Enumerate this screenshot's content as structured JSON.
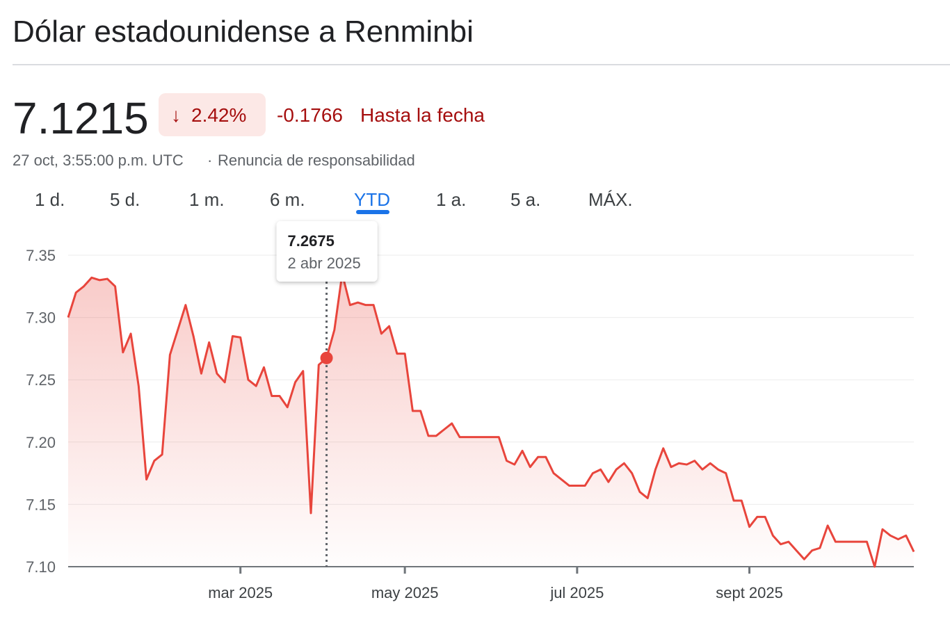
{
  "header": {
    "title": "Dólar estadounidense a Renminbi",
    "price": "7.1215",
    "change_percent": "2.42%",
    "change": "-0.1766",
    "period": "Hasta la fecha",
    "timestamp": "27 oct, 3:55:00 p.m. UTC",
    "disclaimer": "Renuncia de responsabilidad"
  },
  "tabs": [
    "1 d.",
    "5 d.",
    "1 m.",
    "6 m.",
    "YTD",
    "1 a.",
    "5 a.",
    "MÁX."
  ],
  "chart_data": {
    "type": "line",
    "color": "#e8453c",
    "grid": true,
    "categories": [
      null,
      null,
      null,
      null,
      null,
      null,
      null,
      null,
      null,
      null,
      null,
      null,
      null,
      null,
      null,
      null,
      null,
      null,
      null,
      null,
      null,
      null,
      "mar 2025",
      null,
      null,
      null,
      null,
      null,
      null,
      null,
      null,
      null,
      null,
      null,
      null,
      null,
      null,
      null,
      null,
      null,
      null,
      null,
      null,
      "may 2025",
      null,
      null,
      null,
      null,
      null,
      null,
      null,
      null,
      null,
      null,
      null,
      null,
      null,
      null,
      null,
      null,
      null,
      null,
      null,
      null,
      null,
      "jul 2025",
      null,
      null,
      null,
      null,
      null,
      null,
      null,
      null,
      null,
      null,
      null,
      null,
      null,
      null,
      null,
      null,
      null,
      null,
      null,
      null,
      null,
      "sept 2025",
      null,
      null,
      null,
      null,
      null,
      null,
      null,
      null,
      null,
      null,
      null,
      null,
      null,
      null,
      null,
      null,
      null,
      null,
      null,
      null,
      null
    ],
    "values": [
      7.3,
      7.32,
      7.325,
      7.332,
      7.33,
      7.331,
      7.325,
      7.272,
      7.287,
      7.245,
      7.17,
      7.185,
      7.19,
      7.27,
      7.29,
      7.31,
      7.285,
      7.255,
      7.28,
      7.255,
      7.248,
      7.285,
      7.284,
      7.25,
      7.245,
      7.26,
      7.237,
      7.237,
      7.228,
      7.248,
      7.257,
      7.143,
      7.262,
      7.2675,
      7.29,
      7.335,
      7.31,
      7.312,
      7.31,
      7.31,
      7.287,
      7.293,
      7.271,
      7.271,
      7.225,
      7.225,
      7.205,
      7.205,
      7.21,
      7.215,
      7.204,
      7.204,
      7.204,
      7.204,
      7.204,
      7.204,
      7.185,
      7.182,
      7.193,
      7.18,
      7.188,
      7.188,
      7.175,
      7.17,
      7.165,
      7.165,
      7.165,
      7.175,
      7.178,
      7.168,
      7.178,
      7.183,
      7.175,
      7.16,
      7.155,
      7.178,
      7.195,
      7.18,
      7.183,
      7.182,
      7.185,
      7.178,
      7.183,
      7.178,
      7.175,
      7.153,
      7.153,
      7.132,
      7.14,
      7.14,
      7.125,
      7.118,
      7.12,
      7.113,
      7.106,
      7.113,
      7.115,
      7.133,
      7.12,
      7.12,
      7.12,
      7.12,
      7.12,
      7.1,
      7.13,
      7.125,
      7.122,
      7.125,
      7.112
    ],
    "ylim": [
      7.1,
      7.35
    ],
    "yticks": [
      {
        "value": 7.1,
        "label": "7.10"
      },
      7.15,
      {
        "value": 7.2,
        "label": "7.20"
      },
      7.25,
      {
        "value": 7.3,
        "label": "7.30"
      },
      7.35
    ],
    "tooltip": {
      "value": 7.2675,
      "label": "2 abr 2025"
    }
  }
}
